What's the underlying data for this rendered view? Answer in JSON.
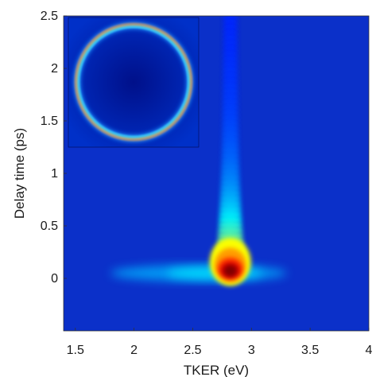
{
  "chart_data": {
    "type": "heatmap",
    "title": "",
    "xlabel": "TKER (eV)",
    "ylabel": "Delay time (ps)",
    "xlim": [
      1.4,
      4.0
    ],
    "ylim": [
      -0.5,
      2.5
    ],
    "x_ticks": [
      1.5,
      2,
      2.5,
      3,
      3.5,
      4
    ],
    "x_tick_labels": [
      "1.5",
      "2",
      "2.5",
      "3",
      "3.5",
      "4"
    ],
    "y_ticks": [
      0,
      0.5,
      1,
      1.5,
      2,
      2.5
    ],
    "y_tick_labels": [
      "0",
      "0.5",
      "1",
      "1.5",
      "2",
      "2.5"
    ],
    "colormap": "jet",
    "background_color": "#0a2dc8",
    "features": [
      {
        "kind": "peak",
        "tker_eV": 2.82,
        "delay_ps": 0.08,
        "intensity": 1.0
      },
      {
        "kind": "tail",
        "tker_eV": 2.82,
        "delay_from_ps": 0.1,
        "delay_to_ps": 2.5,
        "decay_ps": 0.45
      },
      {
        "kind": "baseline_band",
        "delay_ps": 0.05,
        "tker_range_eV": [
          1.8,
          3.3
        ]
      }
    ],
    "inset": {
      "description_kind": "velocity-map image",
      "shape": "ring",
      "colormap": "jet"
    }
  }
}
